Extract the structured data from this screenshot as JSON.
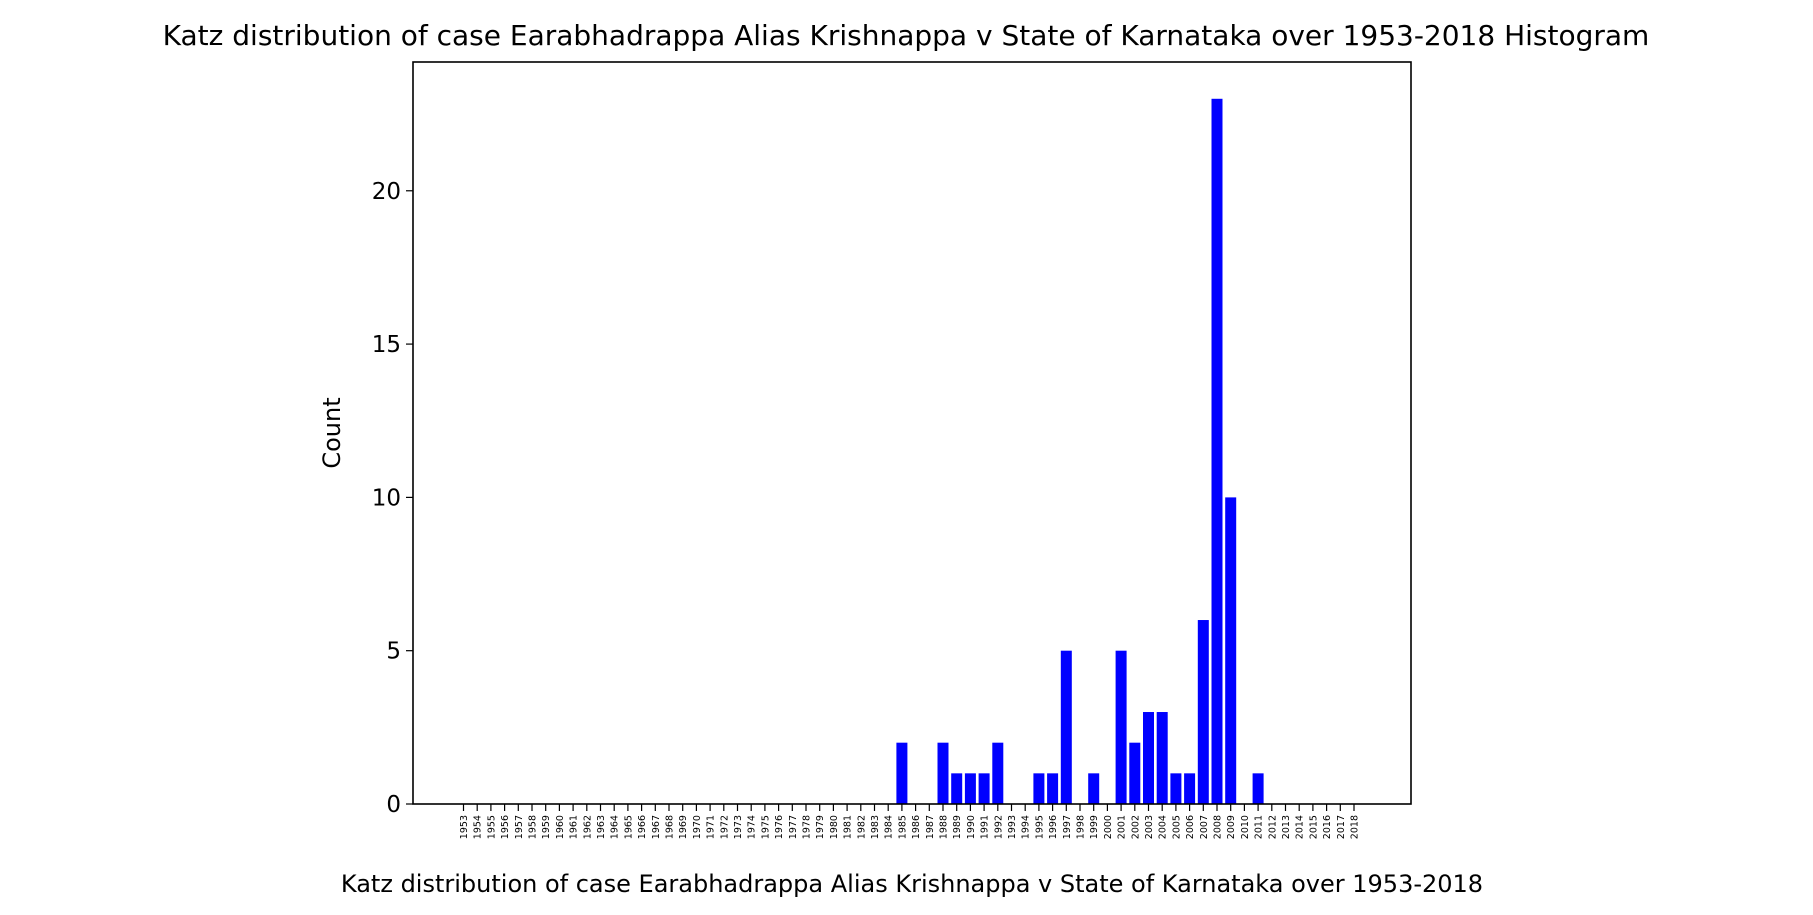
{
  "chart_data": {
    "type": "bar",
    "title": "Katz distribution of case Earabhadrappa Alias Krishnappa v State of Karnataka over 1953-2018 Histogram",
    "xlabel": "Katz distribution of case Earabhadrappa Alias Krishnappa v State of Karnataka over 1953-2018",
    "ylabel": "Count",
    "ylim": [
      0,
      24.2
    ],
    "yticks": [
      0,
      5,
      10,
      15,
      20
    ],
    "grid": false,
    "bar_color": "#0000ff",
    "categories": [
      "1953",
      "1954",
      "1955",
      "1956",
      "1957",
      "1958",
      "1959",
      "1960",
      "1961",
      "1962",
      "1963",
      "1964",
      "1965",
      "1966",
      "1967",
      "1968",
      "1969",
      "1970",
      "1971",
      "1972",
      "1973",
      "1974",
      "1975",
      "1976",
      "1977",
      "1978",
      "1979",
      "1980",
      "1981",
      "1982",
      "1983",
      "1984",
      "1985",
      "1986",
      "1987",
      "1988",
      "1989",
      "1990",
      "1991",
      "1992",
      "1993",
      "1994",
      "1995",
      "1996",
      "1997",
      "1998",
      "1999",
      "2000",
      "2001",
      "2002",
      "2003",
      "2004",
      "2005",
      "2006",
      "2007",
      "2008",
      "2009",
      "2010",
      "2011",
      "2012",
      "2013",
      "2014",
      "2015",
      "2016",
      "2017",
      "2018"
    ],
    "values": [
      0,
      0,
      0,
      0,
      0,
      0,
      0,
      0,
      0,
      0,
      0,
      0,
      0,
      0,
      0,
      0,
      0,
      0,
      0,
      0,
      0,
      0,
      0,
      0,
      0,
      0,
      0,
      0,
      0,
      0,
      0,
      0,
      2,
      0,
      0,
      2,
      1,
      1,
      1,
      2,
      0,
      0,
      1,
      1,
      5,
      0,
      1,
      0,
      5,
      2,
      3,
      3,
      1,
      1,
      6,
      23,
      10,
      0,
      1,
      0,
      0,
      0,
      0,
      0,
      0,
      0
    ]
  }
}
